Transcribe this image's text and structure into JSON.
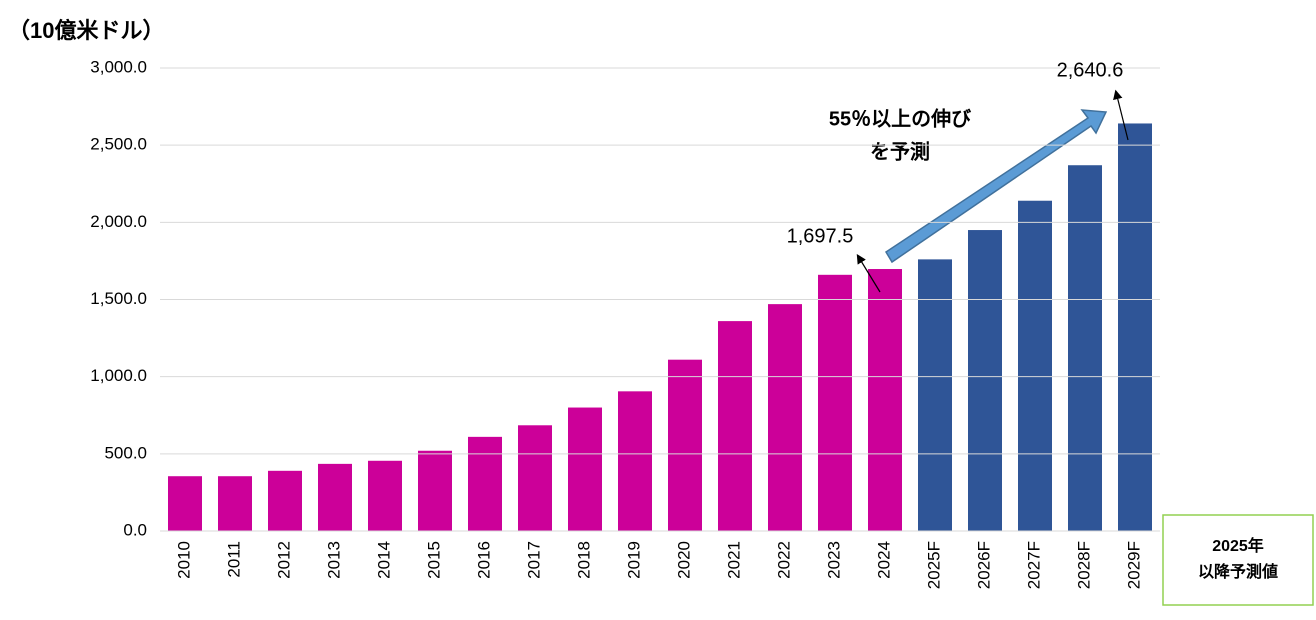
{
  "chart_data": {
    "type": "bar",
    "unit_label": "（10億米ドル）",
    "categories": [
      "2010",
      "2011",
      "2012",
      "2013",
      "2014",
      "2015",
      "2016",
      "2017",
      "2018",
      "2019",
      "2020",
      "2021",
      "2022",
      "2023",
      "2024",
      "2025F",
      "2026F",
      "2027F",
      "2028F",
      "2029F"
    ],
    "values": [
      355,
      355,
      390,
      435,
      455,
      520,
      610,
      685,
      800,
      905,
      1110,
      1360,
      1470,
      1660,
      1697.5,
      1760,
      1950,
      2140,
      2370,
      2640.6
    ],
    "value_labels": [
      null,
      null,
      null,
      null,
      null,
      null,
      null,
      null,
      null,
      null,
      null,
      null,
      null,
      null,
      "1,697.5",
      null,
      null,
      null,
      null,
      "2,640.6"
    ],
    "colors": [
      "#cc0099",
      "#cc0099",
      "#cc0099",
      "#cc0099",
      "#cc0099",
      "#cc0099",
      "#cc0099",
      "#cc0099",
      "#cc0099",
      "#cc0099",
      "#cc0099",
      "#cc0099",
      "#cc0099",
      "#cc0099",
      "#cc0099",
      "#2f5597",
      "#2f5597",
      "#2f5597",
      "#2f5597",
      "#2f5597"
    ],
    "ylim": [
      0,
      3000
    ],
    "yticks": [
      {
        "value": 0,
        "label": "0.0"
      },
      {
        "value": 500,
        "label": "500.0"
      },
      {
        "value": 1000,
        "label": "1,000.0"
      },
      {
        "value": 1500,
        "label": "1,500.0"
      },
      {
        "value": 2000,
        "label": "2,000.0"
      },
      {
        "value": 2500,
        "label": "2,500.0"
      },
      {
        "value": 3000,
        "label": "3,000.0"
      }
    ],
    "grid": true,
    "annotation": [
      "55％以上の伸び",
      "を予測"
    ],
    "note": [
      "2025年",
      "以降予測値"
    ]
  }
}
